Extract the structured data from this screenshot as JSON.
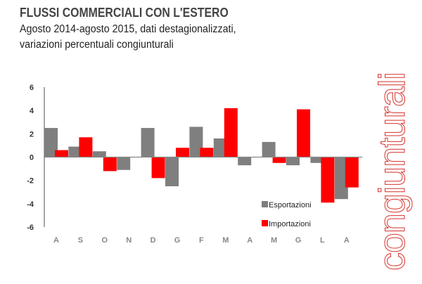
{
  "chart_data": {
    "type": "bar",
    "title": "FLUSSI COMMERCIALI CON L'ESTERO",
    "subtitle": [
      "Agosto 2014-agosto 2015, dati destagionalizzati,",
      "variazioni percentuali congiunturali"
    ],
    "side_label": "congiunturali",
    "categories": [
      "A",
      "S",
      "O",
      "N",
      "D",
      "G",
      "F",
      "M",
      "A",
      "M",
      "G",
      "L",
      "A"
    ],
    "series": [
      {
        "name": "Esportazioni",
        "color": "#7f7f7f",
        "values": [
          2.5,
          0.9,
          0.5,
          -1.1,
          2.5,
          -2.5,
          2.6,
          1.6,
          -0.7,
          1.3,
          -0.7,
          -0.5,
          -3.6
        ]
      },
      {
        "name": "Importazioni",
        "color": "#ff0000",
        "values": [
          0.6,
          1.7,
          -1.2,
          0,
          -1.8,
          0.8,
          0.8,
          4.2,
          0,
          -0.5,
          4.1,
          -3.9,
          -2.6
        ]
      }
    ],
    "yticks": [
      6,
      4,
      2,
      0,
      -2,
      -4,
      -6
    ],
    "ylim": [
      -6,
      6
    ],
    "grid": false,
    "legend_position": "bottom-right"
  }
}
